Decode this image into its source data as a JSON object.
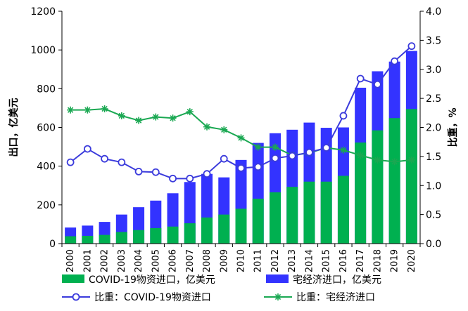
{
  "chart_data": {
    "type": "bar",
    "categories": [
      "2000",
      "2001",
      "2002",
      "2003",
      "2004",
      "2005",
      "2006",
      "2007",
      "2008",
      "2009",
      "2010",
      "2011",
      "2012",
      "2013",
      "2014",
      "2015",
      "2016",
      "2017",
      "2018",
      "2019",
      "2020"
    ],
    "ylabel": "出口，亿美元",
    "y2label": "比重，%",
    "ylim": [
      0,
      1200
    ],
    "y2lim": [
      0,
      4.0
    ],
    "yticks": [
      "0",
      "200",
      "400",
      "600",
      "800",
      "1000",
      "1200"
    ],
    "y2ticks": [
      "0.0",
      "0.5",
      "1.0",
      "1.5",
      "2.0",
      "2.5",
      "3.0",
      "3.5",
      "4.0"
    ],
    "grid": false,
    "legend_position": "bottom",
    "colors": {
      "covid_bar": "#00b050",
      "home_bar": "#3333ff",
      "covid_line": "#3b3bdc",
      "home_line": "#1aa852"
    },
    "series": [
      {
        "name": "COVID-19物资进口，亿美元",
        "kind": "bar",
        "axis": "left",
        "values": [
          38,
          40,
          45,
          60,
          70,
          80,
          88,
          105,
          135,
          150,
          180,
          232,
          265,
          293,
          320,
          320,
          350,
          522,
          585,
          648,
          695
        ]
      },
      {
        "name": "宅经济进口，亿美元",
        "kind": "bar",
        "axis": "left",
        "values": [
          83,
          93,
          112,
          150,
          188,
          222,
          260,
          318,
          360,
          342,
          432,
          520,
          570,
          588,
          625,
          598,
          600,
          805,
          890,
          940,
          995
        ]
      },
      {
        "name": "比重：COVID-19物资进口",
        "kind": "line",
        "axis": "right",
        "marker": "circle",
        "values": [
          1.4,
          1.63,
          1.46,
          1.4,
          1.24,
          1.23,
          1.12,
          1.12,
          1.2,
          1.46,
          1.3,
          1.32,
          1.47,
          1.51,
          1.57,
          1.65,
          2.2,
          2.84,
          2.74,
          3.14,
          3.4
        ]
      },
      {
        "name": "比重：宅经济进口",
        "kind": "line",
        "axis": "right",
        "marker": "star",
        "values": [
          2.3,
          2.3,
          2.32,
          2.2,
          2.12,
          2.18,
          2.16,
          2.27,
          2.01,
          1.96,
          1.82,
          1.66,
          1.66,
          1.52,
          1.56,
          1.65,
          1.61,
          1.52,
          1.44,
          1.41,
          1.44
        ]
      }
    ]
  }
}
